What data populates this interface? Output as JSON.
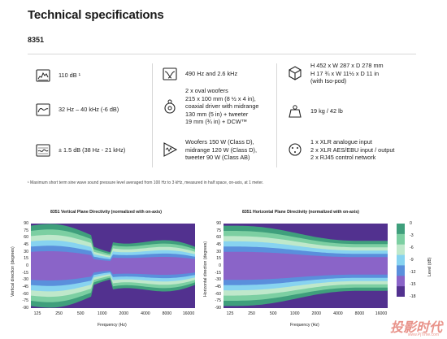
{
  "header": {
    "title": "Technical specifications",
    "model": "8351"
  },
  "specs": [
    {
      "icon": "spl-meter-icon",
      "lines": [
        "110 dB ¹"
      ]
    },
    {
      "icon": "frequency-response-icon",
      "lines": [
        "32 Hz – 40 kHz (-6 dB)"
      ]
    },
    {
      "icon": "accuracy-icon",
      "lines": [
        "± 1.5 dB (38 Hz - 21 kHz)"
      ]
    },
    {
      "icon": "crossover-icon",
      "lines": [
        "490 Hz and 2.6 kHz"
      ]
    },
    {
      "icon": "drivers-icon",
      "lines": [
        "2 x oval woofers",
        "215 x 100 mm (8 ½ x 4 in),",
        "coaxial driver with midrange",
        "130 mm (5 in) + tweeter",
        "19 mm (¾ in) + DCW™"
      ]
    },
    {
      "icon": "amplifier-icon",
      "lines": [
        "Woofers 150 W (Class D),",
        "midrange 120 W (Class D),",
        "tweeter 90 W (Class AB)"
      ]
    },
    {
      "icon": "dimensions-cube-icon",
      "lines": [
        "H 452 x W 287 x D 278 mm",
        "H 17 ¾ x W 11½ x D 11 in",
        "(with Iso-pod)"
      ]
    },
    {
      "icon": "weight-icon",
      "lines": [
        "19 kg / 42 lb"
      ]
    },
    {
      "icon": "connectors-icon",
      "lines": [
        "1 x XLR analogue input",
        "2 x XLR AES/EBU input / output",
        "2 x RJ45 control network"
      ]
    }
  ],
  "footnote": "¹ Maximum short term sine wave sound pressure level averaged from 100 Hz to 3 kHz, measured in half space, on-axis, at 1 meter.",
  "colors": {
    "level_0": "#3f9f7c",
    "level_m3": "#7ccfa2",
    "level_m6": "#bfe8cb",
    "level_m9": "#87d3f0",
    "level_m12": "#5a8fdc",
    "level_m15": "#8a64c8",
    "level_m18": "#52318f"
  },
  "chart_data": [
    {
      "type": "heatmap",
      "title": "8351 Vertical Plane Directivity (normalized with on-axis)",
      "xlabel": "Frequency (Hz)",
      "ylabel": "Vertical direction (degrees)",
      "x_ticks": [
        "125",
        "250",
        "500",
        "1000",
        "2000",
        "4000",
        "8000",
        "16000"
      ],
      "y_ticks": [
        "90",
        "75",
        "60",
        "45",
        "30",
        "15",
        "0",
        "-15",
        "-30",
        "-45",
        "-60",
        "-75",
        "-90"
      ],
      "ylim": [
        -90,
        90
      ],
      "colorbar_label": "",
      "colorbar_ticks": []
    },
    {
      "type": "heatmap",
      "title": "8351 Horizontal Plane Directivity (normalized with on-axis)",
      "xlabel": "Frequency (Hz)",
      "ylabel": "Horizontal direction (degrees)",
      "x_ticks": [
        "125",
        "250",
        "500",
        "1000",
        "2000",
        "4000",
        "8000",
        "16000"
      ],
      "y_ticks": [
        "90",
        "75",
        "60",
        "45",
        "30",
        "15",
        "0",
        "-15",
        "-30",
        "-45",
        "-60",
        "-75",
        "-90"
      ],
      "ylim": [
        -90,
        90
      ],
      "colorbar_label": "Level (dB)",
      "colorbar_ticks": [
        "0",
        "-3",
        "-6",
        "-9",
        "-12",
        "-15",
        "-18"
      ]
    }
  ],
  "watermark": {
    "text": "投影时代",
    "url": "www.PjTime.com"
  }
}
